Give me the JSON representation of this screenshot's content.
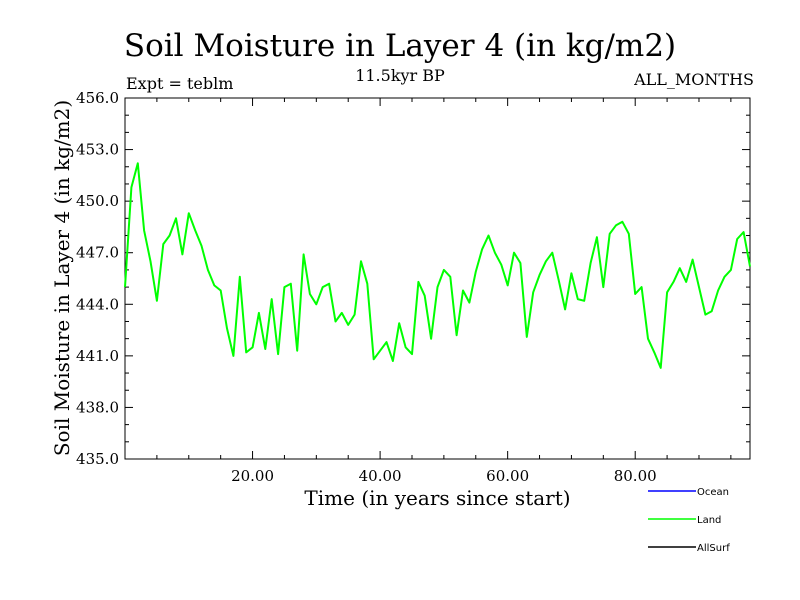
{
  "chart_data": {
    "type": "line",
    "title": "Soil Moisture in Layer 4 (in kg/m2)",
    "subtitle": "11.5kyr BP",
    "expt_label": "Expt = teblm",
    "period_label": "ALL_MONTHS",
    "xlabel": "Time (in years since start)",
    "ylabel": "Soil Moisture in Layer 4 (in kg/m2)",
    "xlim": [
      0,
      98
    ],
    "ylim": [
      435.0,
      456.0
    ],
    "xticks": [
      20,
      40,
      60,
      80
    ],
    "xtick_labels": [
      "20.00",
      "40.00",
      "60.00",
      "80.00"
    ],
    "yticks": [
      435,
      438,
      441,
      444,
      447,
      450,
      453,
      456
    ],
    "ytick_labels": [
      "435.0",
      "438.0",
      "441.0",
      "444.0",
      "447.0",
      "450.0",
      "453.0",
      "456.0"
    ],
    "legend_position": "bottom-right, below plot",
    "series": [
      {
        "name": "Ocean",
        "color": "#0000ff",
        "x": [],
        "values": []
      },
      {
        "name": "Land",
        "color": "#00ff00",
        "x": [
          0,
          1,
          2,
          3,
          4,
          5,
          6,
          7,
          8,
          9,
          10,
          11,
          12,
          13,
          14,
          15,
          16,
          17,
          18,
          19,
          20,
          21,
          22,
          23,
          24,
          25,
          26,
          27,
          28,
          29,
          30,
          31,
          32,
          33,
          34,
          35,
          36,
          37,
          38,
          39,
          40,
          41,
          42,
          43,
          44,
          45,
          46,
          47,
          48,
          49,
          50,
          51,
          52,
          53,
          54,
          55,
          56,
          57,
          58,
          59,
          60,
          61,
          62,
          63,
          64,
          65,
          66,
          67,
          68,
          69,
          70,
          71,
          72,
          73,
          74,
          75,
          76,
          77,
          78,
          79,
          80,
          81,
          82,
          83,
          84,
          85,
          86,
          87,
          88,
          89,
          90,
          91,
          92,
          93,
          94,
          95,
          96,
          97,
          98
        ],
        "values": [
          445.0,
          450.8,
          452.2,
          448.3,
          446.5,
          444.2,
          447.5,
          448.0,
          449.0,
          446.9,
          449.3,
          448.3,
          447.4,
          446.0,
          445.1,
          444.8,
          442.6,
          441.0,
          445.6,
          441.2,
          441.5,
          443.5,
          441.4,
          444.3,
          441.1,
          445.0,
          445.2,
          441.3,
          446.9,
          444.6,
          444.0,
          445.0,
          445.2,
          443.0,
          443.5,
          442.8,
          443.4,
          446.5,
          445.2,
          440.8,
          441.3,
          441.8,
          440.7,
          442.9,
          441.5,
          441.1,
          445.3,
          444.5,
          442.0,
          445.0,
          446.0,
          445.6,
          442.2,
          444.8,
          444.1,
          445.9,
          447.2,
          448.0,
          447.0,
          446.3,
          445.1,
          447.0,
          446.4,
          442.1,
          444.7,
          445.7,
          446.5,
          447.0,
          445.4,
          443.7,
          445.8,
          444.3,
          444.2,
          446.4,
          447.9,
          445.0,
          448.1,
          448.6,
          448.8,
          448.1,
          444.6,
          445.0,
          442.0,
          441.2,
          440.3,
          444.7,
          445.3,
          446.1,
          445.3,
          446.6,
          445.0,
          443.4,
          443.6,
          444.8,
          445.6,
          446.0,
          447.8,
          448.2,
          446.2
        ]
      },
      {
        "name": "AllSurf",
        "color": "#000000",
        "x": [],
        "values": []
      }
    ]
  }
}
